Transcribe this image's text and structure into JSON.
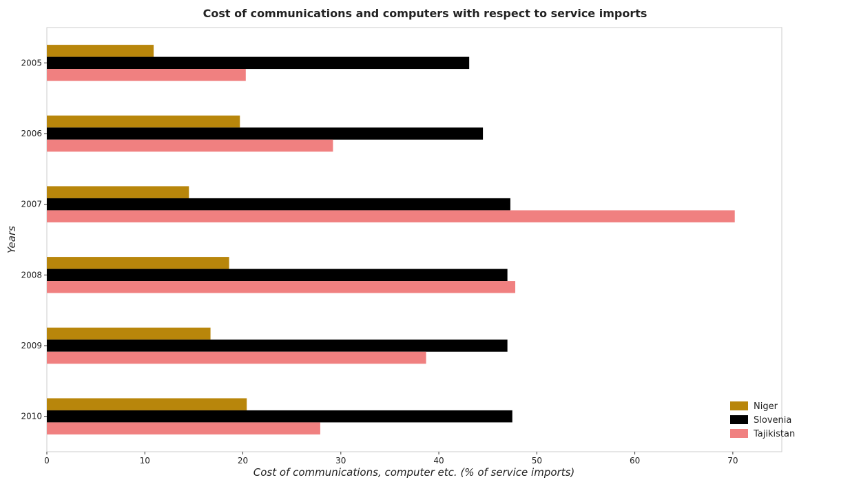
{
  "chart_data": {
    "type": "bar",
    "orientation": "horizontal",
    "title": "Cost of communications and computers with respect to service imports",
    "xlabel": "Cost of communications, computer etc. (% of service imports)",
    "ylabel": "Years",
    "xlim": [
      0,
      75
    ],
    "xticks": [
      0,
      10,
      20,
      30,
      40,
      50,
      60,
      70
    ],
    "categories": [
      "2005",
      "2006",
      "2007",
      "2008",
      "2009",
      "2010"
    ],
    "series": [
      {
        "name": "Niger",
        "color": "#b8860b",
        "values": [
          10.9,
          19.7,
          14.5,
          18.6,
          16.7,
          20.4
        ]
      },
      {
        "name": "Slovenia",
        "color": "#000000",
        "values": [
          43.1,
          44.5,
          47.3,
          47.0,
          47.0,
          47.5
        ]
      },
      {
        "name": "Tajikistan",
        "color": "#f08080",
        "values": [
          20.3,
          29.2,
          70.2,
          47.8,
          38.7,
          27.9
        ]
      }
    ],
    "grid": false,
    "legend_position": "bottom-right"
  }
}
